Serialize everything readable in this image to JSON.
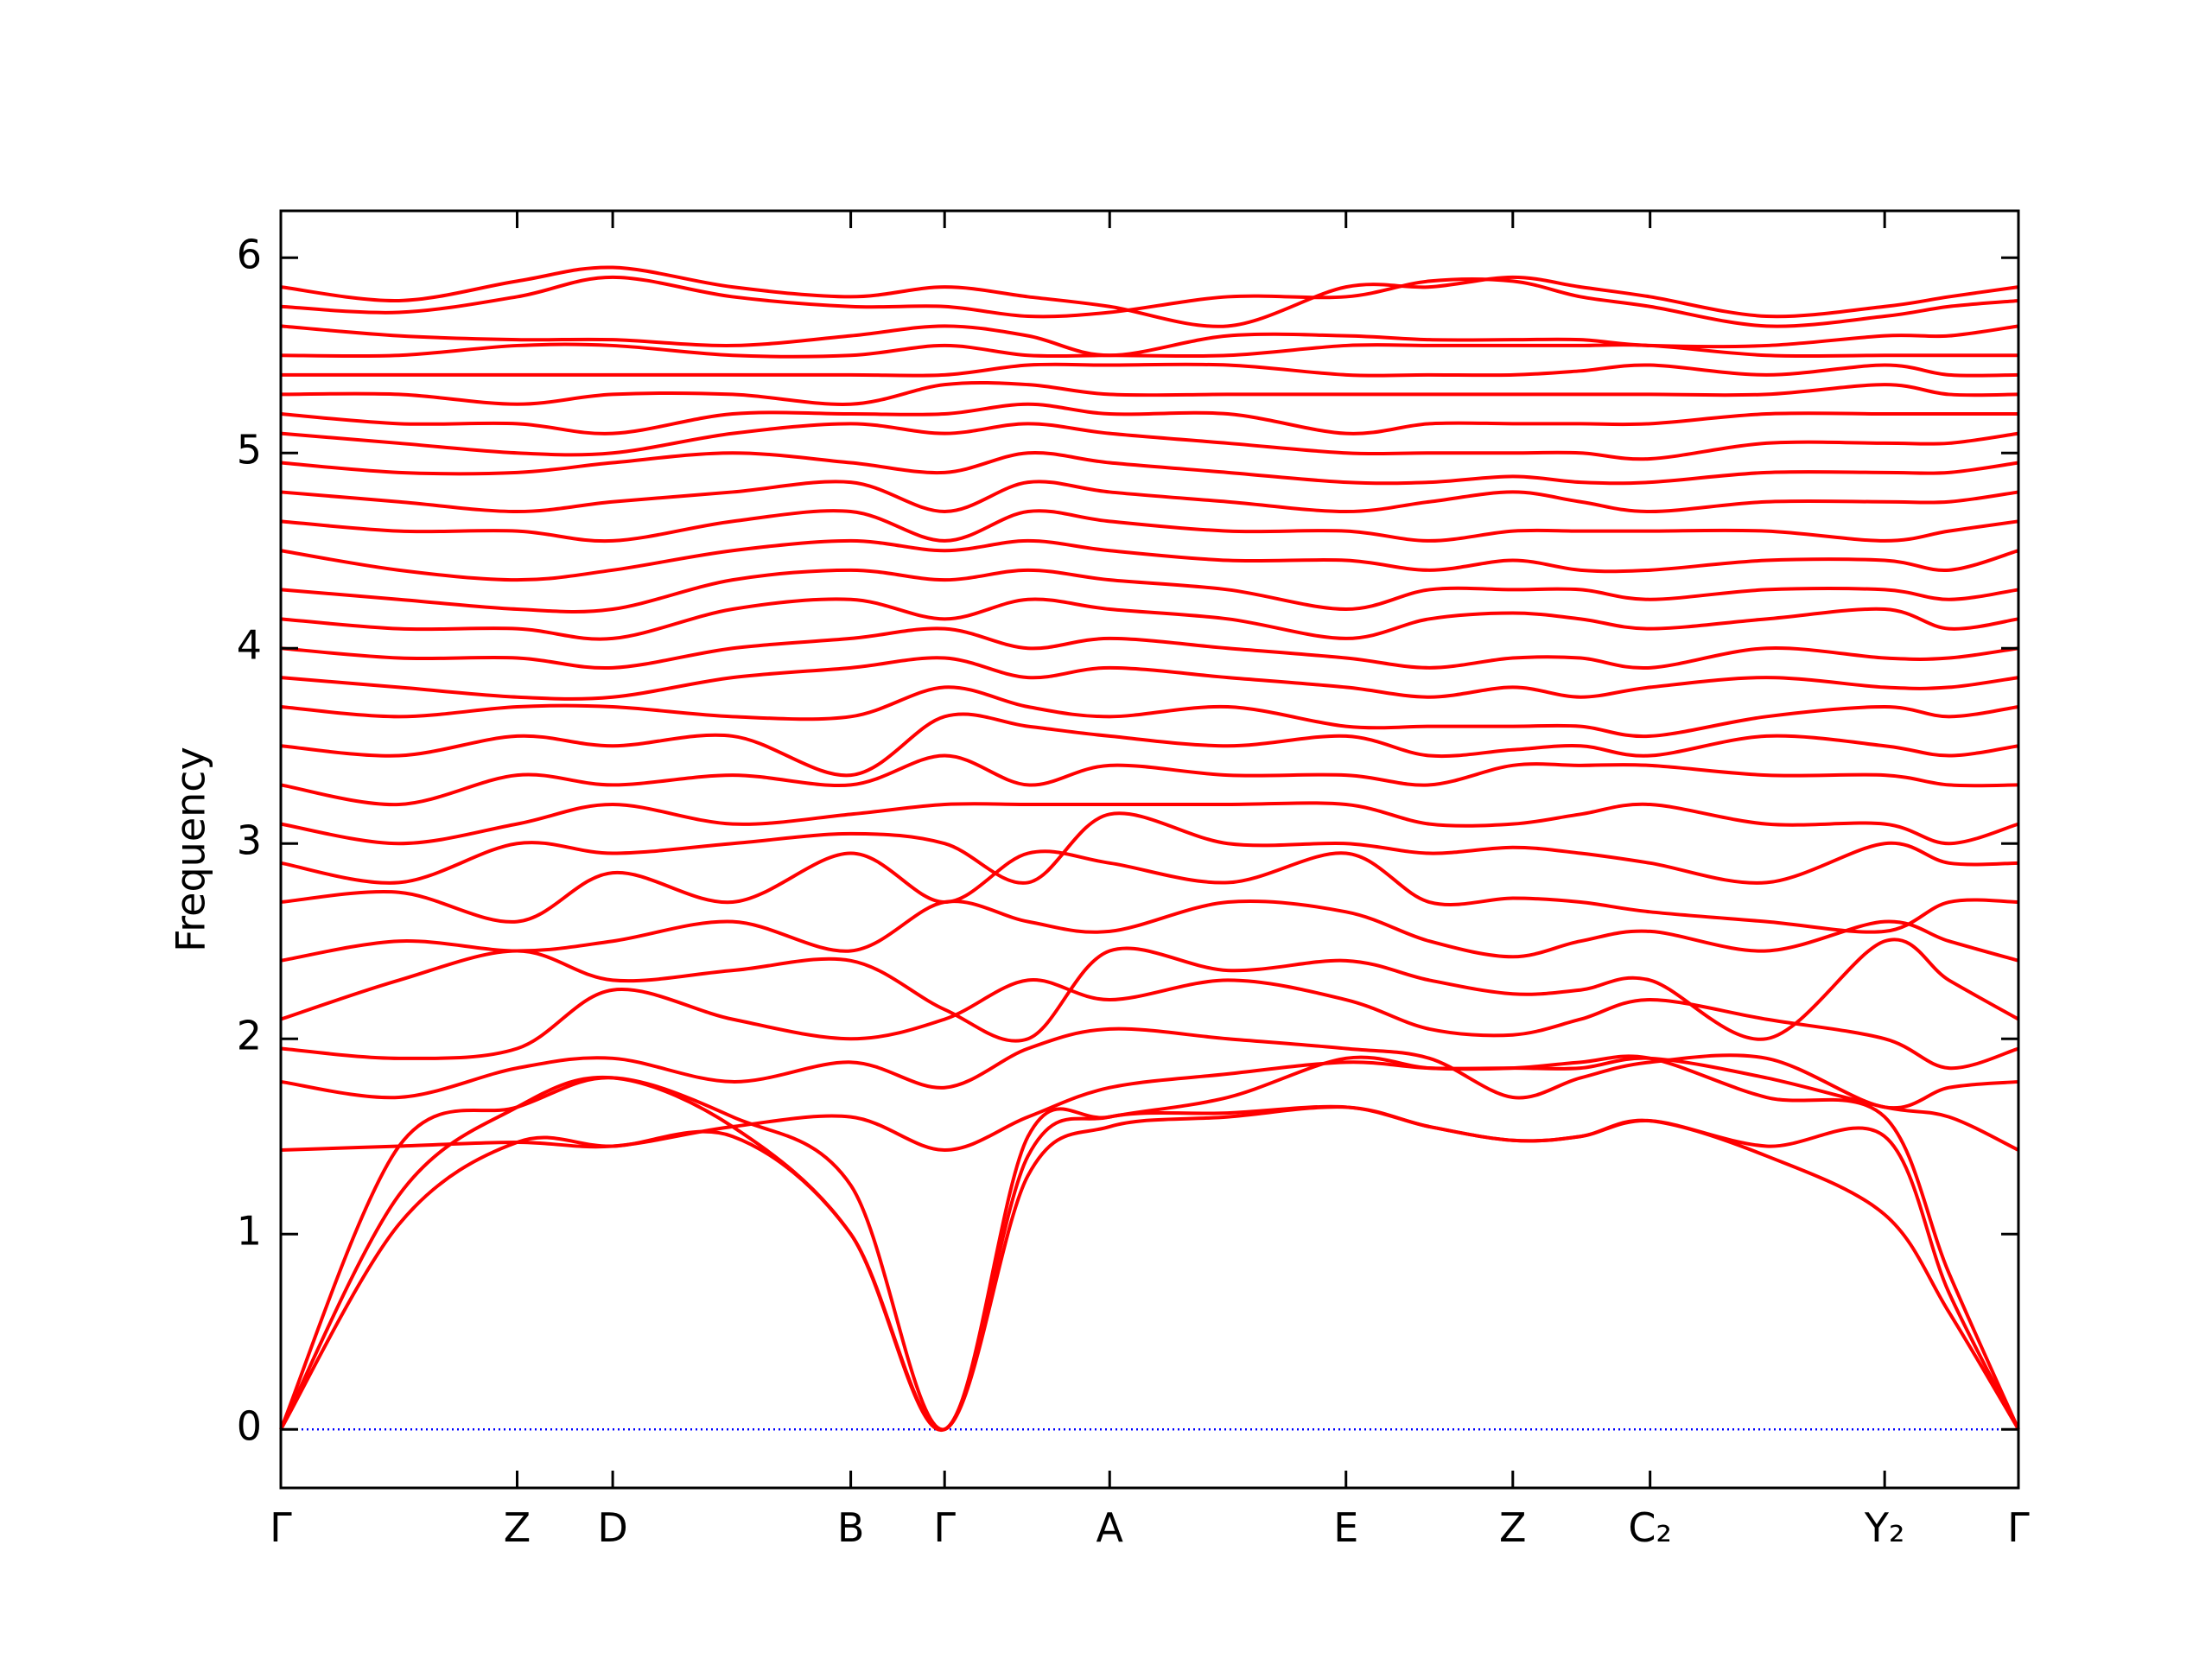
{
  "chart_data": {
    "type": "line",
    "ylabel": "Frequency",
    "xlim": [
      0,
      1
    ],
    "ylim": [
      -0.3,
      6.24
    ],
    "xticks": [
      {
        "value": 0,
        "label": "Γ"
      },
      {
        "value": 0.136,
        "label": "Z"
      },
      {
        "value": 0.191,
        "label": "D"
      },
      {
        "value": 0.328,
        "label": "B"
      },
      {
        "value": 0.382,
        "label": "Γ"
      },
      {
        "value": 0.477,
        "label": "A"
      },
      {
        "value": 0.613,
        "label": "E"
      },
      {
        "value": 0.709,
        "label": "Z"
      },
      {
        "value": 0.788,
        "label": "C₂"
      },
      {
        "value": 0.923,
        "label": "Y₂"
      },
      {
        "value": 1,
        "label": "Γ"
      }
    ],
    "yticks": [
      0,
      1,
      2,
      3,
      4,
      5,
      6
    ],
    "zero_line": {
      "value": 0,
      "color": "#0000ff"
    },
    "color": "#ff0000",
    "x": [
      0,
      0.068,
      0.136,
      0.191,
      0.26,
      0.328,
      0.382,
      0.43,
      0.477,
      0.545,
      0.613,
      0.661,
      0.709,
      0.748,
      0.788,
      0.855,
      0.923,
      0.96,
      1
    ],
    "series": [
      {
        "values": [
          0,
          1.05,
          1.47,
          1.45,
          1.5,
          1.0,
          0,
          1.3,
          1.55,
          1.6,
          1.65,
          1.55,
          1.48,
          1.5,
          1.58,
          1.4,
          1.1,
          0.6,
          0
        ]
      },
      {
        "values": [
          0,
          1.2,
          1.65,
          1.8,
          1.55,
          1.0,
          0,
          1.4,
          1.6,
          1.62,
          1.65,
          1.55,
          1.48,
          1.5,
          1.58,
          1.45,
          1.5,
          0.7,
          0
        ]
      },
      {
        "values": [
          0,
          1.45,
          1.65,
          1.8,
          1.6,
          1.25,
          0,
          1.5,
          1.6,
          1.7,
          1.9,
          1.85,
          1.85,
          1.88,
          1.9,
          1.7,
          1.6,
          0.8,
          0
        ]
      },
      {
        "values": [
          1.43,
          1.45,
          1.47,
          1.45,
          1.55,
          1.6,
          1.43,
          1.6,
          1.75,
          1.82,
          1.88,
          1.85,
          1.85,
          1.85,
          1.9,
          1.8,
          1.65,
          1.6,
          1.43
        ]
      },
      {
        "values": [
          1.78,
          1.7,
          1.85,
          1.9,
          1.78,
          1.88,
          1.75,
          1.95,
          2.05,
          2.0,
          1.95,
          1.9,
          1.7,
          1.8,
          1.88,
          1.9,
          1.65,
          1.75,
          1.78
        ]
      },
      {
        "values": [
          1.95,
          1.9,
          1.95,
          2.25,
          2.1,
          2.0,
          2.1,
          2.3,
          2.2,
          2.3,
          2.2,
          2.05,
          2.02,
          2.1,
          2.2,
          2.1,
          2.0,
          1.85,
          1.95
        ]
      },
      {
        "values": [
          2.1,
          2.3,
          2.45,
          2.3,
          2.35,
          2.4,
          2.15,
          2.0,
          2.45,
          2.35,
          2.4,
          2.3,
          2.23,
          2.25,
          2.3,
          2.0,
          2.5,
          2.3,
          2.1
        ]
      },
      {
        "values": [
          2.4,
          2.5,
          2.45,
          2.5,
          2.6,
          2.45,
          2.7,
          2.6,
          2.55,
          2.7,
          2.65,
          2.5,
          2.42,
          2.5,
          2.55,
          2.45,
          2.6,
          2.5,
          2.4
        ]
      },
      {
        "values": [
          2.7,
          2.75,
          2.6,
          2.85,
          2.7,
          2.95,
          2.7,
          2.95,
          2.9,
          2.8,
          2.95,
          2.7,
          2.72,
          2.7,
          2.65,
          2.6,
          2.55,
          2.7,
          2.7
        ]
      },
      {
        "values": [
          2.9,
          2.8,
          3.0,
          2.95,
          3.0,
          3.05,
          3.0,
          2.8,
          3.15,
          3.0,
          3.0,
          2.95,
          2.98,
          2.95,
          2.9,
          2.8,
          3.0,
          2.9,
          2.9
        ]
      },
      {
        "values": [
          3.1,
          3.0,
          3.1,
          3.2,
          3.1,
          3.15,
          3.2,
          3.2,
          3.2,
          3.2,
          3.2,
          3.1,
          3.1,
          3.15,
          3.2,
          3.1,
          3.1,
          3.0,
          3.1
        ]
      },
      {
        "values": [
          3.3,
          3.2,
          3.35,
          3.3,
          3.35,
          3.3,
          3.45,
          3.3,
          3.4,
          3.35,
          3.35,
          3.3,
          3.4,
          3.4,
          3.4,
          3.35,
          3.35,
          3.3,
          3.3
        ]
      },
      {
        "values": [
          3.5,
          3.45,
          3.55,
          3.5,
          3.55,
          3.35,
          3.65,
          3.6,
          3.55,
          3.5,
          3.55,
          3.45,
          3.48,
          3.5,
          3.45,
          3.55,
          3.5,
          3.45,
          3.5
        ]
      },
      {
        "values": [
          3.7,
          3.65,
          3.7,
          3.7,
          3.65,
          3.65,
          3.8,
          3.7,
          3.65,
          3.7,
          3.6,
          3.6,
          3.6,
          3.6,
          3.55,
          3.65,
          3.7,
          3.65,
          3.7
        ]
      },
      {
        "values": [
          3.85,
          3.8,
          3.75,
          3.75,
          3.85,
          3.9,
          3.95,
          3.85,
          3.9,
          3.85,
          3.8,
          3.75,
          3.8,
          3.75,
          3.8,
          3.85,
          3.8,
          3.8,
          3.85
        ]
      },
      {
        "values": [
          4.0,
          3.95,
          3.95,
          3.9,
          4.0,
          4.05,
          4.1,
          4.0,
          4.05,
          4.0,
          3.95,
          3.9,
          3.95,
          3.95,
          3.9,
          4.0,
          3.95,
          3.95,
          4.0
        ]
      },
      {
        "values": [
          4.15,
          4.1,
          4.1,
          4.05,
          4.2,
          4.25,
          4.15,
          4.25,
          4.2,
          4.15,
          4.05,
          4.15,
          4.18,
          4.15,
          4.1,
          4.15,
          4.2,
          4.1,
          4.15
        ]
      },
      {
        "values": [
          4.3,
          4.25,
          4.2,
          4.2,
          4.35,
          4.4,
          4.35,
          4.4,
          4.35,
          4.3,
          4.2,
          4.3,
          4.3,
          4.3,
          4.25,
          4.3,
          4.3,
          4.25,
          4.3
        ]
      },
      {
        "values": [
          4.5,
          4.4,
          4.35,
          4.4,
          4.5,
          4.55,
          4.5,
          4.55,
          4.5,
          4.45,
          4.45,
          4.4,
          4.45,
          4.4,
          4.4,
          4.45,
          4.45,
          4.4,
          4.5
        ]
      },
      {
        "values": [
          4.65,
          4.6,
          4.6,
          4.55,
          4.65,
          4.7,
          4.55,
          4.7,
          4.65,
          4.6,
          4.6,
          4.55,
          4.6,
          4.6,
          4.6,
          4.6,
          4.55,
          4.6,
          4.65
        ]
      },
      {
        "values": [
          4.8,
          4.75,
          4.7,
          4.75,
          4.8,
          4.85,
          4.7,
          4.85,
          4.8,
          4.75,
          4.7,
          4.75,
          4.8,
          4.75,
          4.7,
          4.75,
          4.75,
          4.75,
          4.8
        ]
      },
      {
        "values": [
          4.95,
          4.9,
          4.9,
          4.95,
          5.0,
          4.95,
          4.9,
          5.0,
          4.95,
          4.9,
          4.85,
          4.85,
          4.88,
          4.85,
          4.85,
          4.9,
          4.9,
          4.9,
          4.95
        ]
      },
      {
        "values": [
          5.1,
          5.05,
          5.0,
          5.0,
          5.1,
          5.15,
          5.1,
          5.15,
          5.1,
          5.05,
          5.0,
          5.0,
          5.0,
          5.0,
          4.97,
          5.05,
          5.05,
          5.05,
          5.1
        ]
      },
      {
        "values": [
          5.2,
          5.15,
          5.15,
          5.1,
          5.2,
          5.2,
          5.2,
          5.25,
          5.2,
          5.2,
          5.1,
          5.15,
          5.15,
          5.15,
          5.15,
          5.2,
          5.2,
          5.2,
          5.2
        ]
      },
      {
        "values": [
          5.3,
          5.3,
          5.25,
          5.3,
          5.3,
          5.25,
          5.35,
          5.35,
          5.3,
          5.3,
          5.3,
          5.3,
          5.3,
          5.3,
          5.3,
          5.3,
          5.35,
          5.3,
          5.3
        ]
      },
      {
        "values": [
          5.4,
          5.4,
          5.4,
          5.4,
          5.4,
          5.4,
          5.4,
          5.45,
          5.45,
          5.45,
          5.4,
          5.4,
          5.4,
          5.42,
          5.45,
          5.4,
          5.45,
          5.4,
          5.4
        ]
      },
      {
        "values": [
          5.5,
          5.5,
          5.55,
          5.55,
          5.5,
          5.5,
          5.55,
          5.5,
          5.5,
          5.5,
          5.55,
          5.55,
          5.55,
          5.55,
          5.55,
          5.5,
          5.5,
          5.5,
          5.5
        ]
      },
      {
        "values": [
          5.65,
          5.6,
          5.58,
          5.58,
          5.55,
          5.6,
          5.65,
          5.6,
          5.5,
          5.6,
          5.6,
          5.58,
          5.58,
          5.58,
          5.55,
          5.55,
          5.6,
          5.6,
          5.65
        ]
      },
      {
        "values": [
          5.75,
          5.72,
          5.8,
          5.9,
          5.8,
          5.75,
          5.75,
          5.7,
          5.72,
          5.8,
          5.8,
          5.88,
          5.88,
          5.8,
          5.75,
          5.65,
          5.7,
          5.75,
          5.78
        ]
      },
      {
        "values": [
          5.85,
          5.78,
          5.88,
          5.95,
          5.85,
          5.8,
          5.85,
          5.8,
          5.75,
          5.65,
          5.85,
          5.85,
          5.9,
          5.85,
          5.8,
          5.7,
          5.75,
          5.8,
          5.85
        ]
      }
    ]
  }
}
